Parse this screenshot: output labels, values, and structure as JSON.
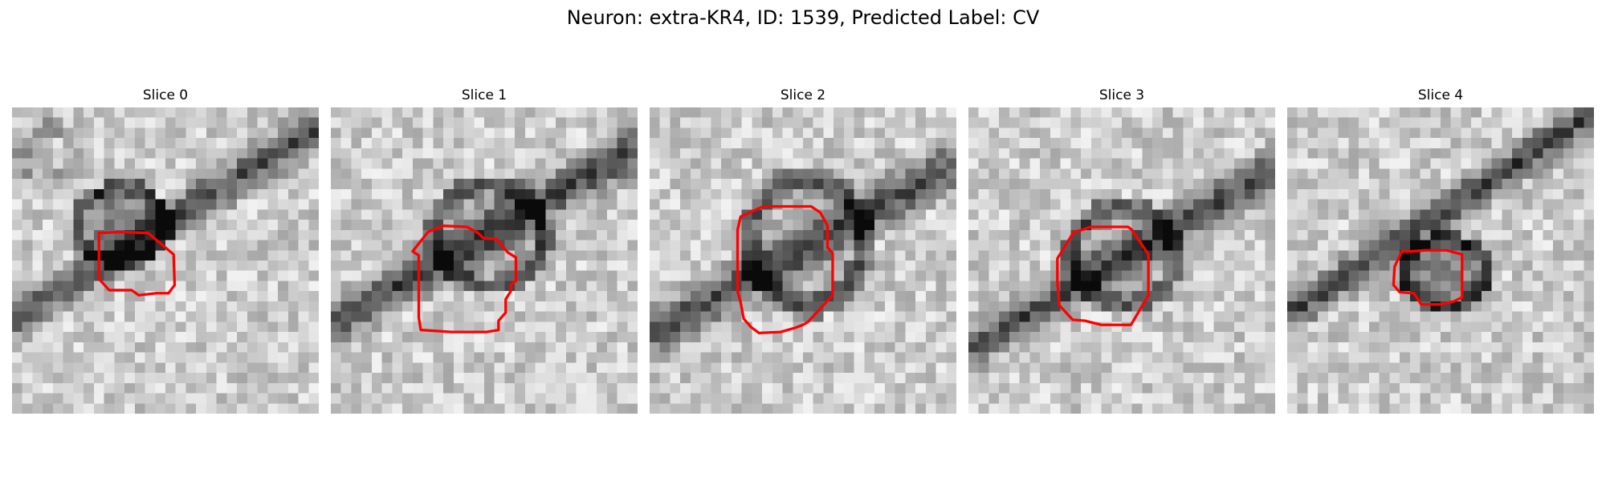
{
  "figure": {
    "title": "Neuron: extra-KR4, ID: 1539, Predicted Label: CV",
    "contour_color": "#ff0000",
    "colormap": "grayscale",
    "panels": [
      {
        "title": "Slice 0",
        "seed": 11
      },
      {
        "title": "Slice 1",
        "seed": 23
      },
      {
        "title": "Slice 2",
        "seed": 37
      },
      {
        "title": "Slice 3",
        "seed": 41
      },
      {
        "title": "Slice 4",
        "seed": 59
      }
    ]
  }
}
